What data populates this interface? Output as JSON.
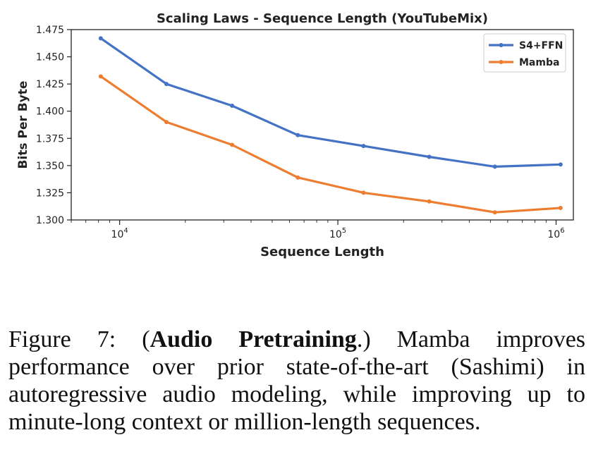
{
  "chart_data": {
    "type": "line",
    "title": "Scaling Laws - Sequence Length (YouTubeMix)",
    "xlabel": "Sequence Length",
    "ylabel": "Bits Per Byte",
    "xscale": "log",
    "xlim": [
      6000,
      1200000
    ],
    "ylim": [
      1.3,
      1.475
    ],
    "yticks": [
      "1.300",
      "1.325",
      "1.350",
      "1.375",
      "1.400",
      "1.425",
      "1.450",
      "1.475"
    ],
    "xticks": [
      {
        "base": "10",
        "exp": "4",
        "value": 10000
      },
      {
        "base": "10",
        "exp": "5",
        "value": 100000
      },
      {
        "base": "10",
        "exp": "6",
        "value": 1000000
      }
    ],
    "legend_position": "top-right",
    "grid": false,
    "x": [
      8192,
      16384,
      32768,
      65536,
      131072,
      262144,
      524288,
      1048576
    ],
    "series": [
      {
        "name": "S4+FFN",
        "color": "#4472c4",
        "values": [
          1.467,
          1.425,
          1.405,
          1.378,
          1.368,
          1.358,
          1.349,
          1.351
        ]
      },
      {
        "name": "Mamba",
        "color": "#ed7d31",
        "values": [
          1.432,
          1.39,
          1.369,
          1.339,
          1.325,
          1.317,
          1.307,
          1.311
        ]
      }
    ]
  },
  "caption": {
    "figure_label": "Figure 7: (",
    "bold_text": "Audio Pretraining",
    "rest": ".) Mamba improves performance over prior state-of-the-art (Sashimi) in autoregressive audio modeling, while improving up to minute-long context or million-length sequences."
  }
}
